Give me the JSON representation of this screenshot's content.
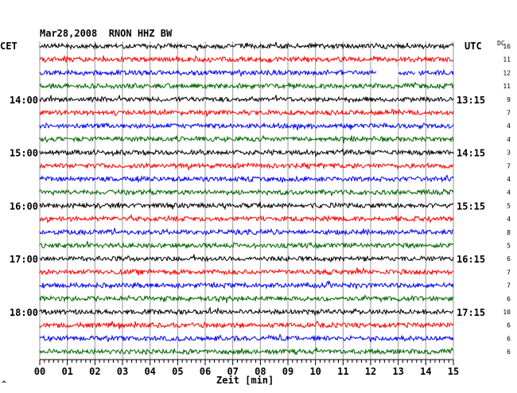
{
  "header": {
    "title": "Mar28,2008  RNON HHZ BW",
    "left_tz": "CET",
    "right_tz": "UTC",
    "dc_label": "DC"
  },
  "chart_data": {
    "type": "line",
    "station": "RNON",
    "channel": "HHZ",
    "network": "BW",
    "date": "Mar28,2008",
    "xlabel": "Zeit [min]",
    "x_ticks": [
      "00",
      "01",
      "02",
      "03",
      "04",
      "05",
      "06",
      "07",
      "08",
      "09",
      "10",
      "11",
      "12",
      "13",
      "14",
      "15"
    ],
    "xlim": [
      0,
      15
    ],
    "trace_interval_min": 15,
    "trace_count": 24,
    "trace_colors": [
      "#000000",
      "#ff0000",
      "#0000ff",
      "#006600"
    ],
    "left_hour_labels": [
      {
        "label": "14:00",
        "trace": 4
      },
      {
        "label": "15:00",
        "trace": 8
      },
      {
        "label": "16:00",
        "trace": 12
      },
      {
        "label": "17:00",
        "trace": 16
      },
      {
        "label": "18:00",
        "trace": 20
      }
    ],
    "right_hour_labels": [
      {
        "label": "13:15",
        "trace": 4
      },
      {
        "label": "14:15",
        "trace": 8
      },
      {
        "label": "15:15",
        "trace": 12
      },
      {
        "label": "16:15",
        "trace": 16
      },
      {
        "label": "17:15",
        "trace": 20
      }
    ],
    "dc_offsets": [
      "16",
      "11",
      "12",
      "11",
      "9",
      "7",
      "4",
      "4",
      "3",
      "7",
      "4",
      "4",
      "5",
      "4",
      "8",
      "5",
      "6",
      "7",
      "7",
      "6",
      "10",
      "6",
      "6",
      "6"
    ],
    "gaps": [
      {
        "trace": 2,
        "from_min": 12.2,
        "to_min": 13.0
      },
      {
        "trace": 2,
        "from_min": 13.6,
        "to_min": 13.75
      }
    ]
  },
  "icons": {
    "corner_mark": "small-mark-icon"
  }
}
